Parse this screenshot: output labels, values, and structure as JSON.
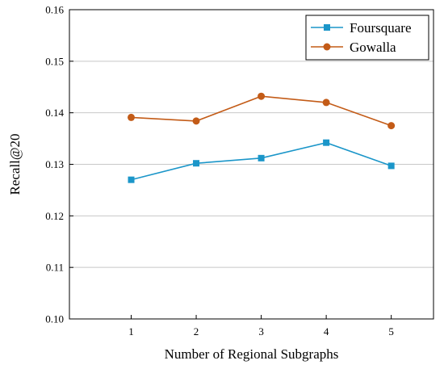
{
  "chart_data": {
    "type": "line",
    "xlabel": "Number of Regional Subgraphs",
    "ylabel": "Recall@20",
    "x": [
      1,
      2,
      3,
      4,
      5
    ],
    "xlim": [
      0.05,
      5.65
    ],
    "ylim": [
      0.1,
      0.16
    ],
    "yticks": [
      0.1,
      0.11,
      0.12,
      0.13,
      0.14,
      0.15,
      0.16
    ],
    "yticks_text": [
      "0.10",
      "0.11",
      "0.12",
      "0.13",
      "0.14",
      "0.15",
      "0.16"
    ],
    "xticks_text": [
      "1",
      "2",
      "3",
      "4",
      "5"
    ],
    "grid": "horizontal",
    "legend_position": "top-right",
    "series": [
      {
        "name": "Foursquare",
        "values": [
          0.127,
          0.1302,
          0.1312,
          0.1342,
          0.1297
        ],
        "color": "#1b96c9",
        "marker": "square"
      },
      {
        "name": "Gowalla",
        "values": [
          0.1391,
          0.1384,
          0.1432,
          0.142,
          0.1375
        ],
        "color": "#c35b17",
        "marker": "circle"
      }
    ]
  }
}
